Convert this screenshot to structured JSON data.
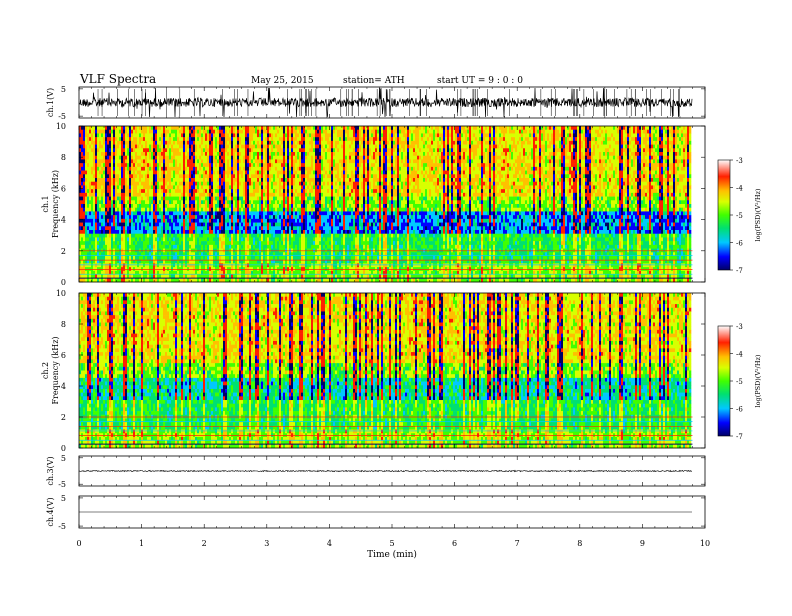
{
  "header": {
    "title": "VLF  Spectra",
    "date": "May 25,  2015",
    "station": "station= ATH",
    "start": "start  UT  =   9  : 0  : 0"
  },
  "chart_data": {
    "type": "heatmap",
    "xlabel": "Time  (min)",
    "xlim": [
      0,
      10
    ],
    "x_ticks": [
      "0",
      "1",
      "2",
      "3",
      "4",
      "5",
      "6",
      "7",
      "8",
      "9",
      "10"
    ],
    "panels": [
      {
        "label": "ch.1(V)",
        "type": "waveform",
        "ylim": [
          -5,
          5
        ],
        "y_ticks": [
          "5",
          "-5"
        ],
        "amplitude": "high"
      },
      {
        "label": "ch.1\nFrequency  (kHz)",
        "type": "spectrogram",
        "ylim": [
          0,
          10
        ],
        "y_ticks": [
          "0",
          "2",
          "4",
          "6",
          "8",
          "10"
        ],
        "colorbar": {
          "label": "log(PSD)(V²/Hz)",
          "range": [
            -7,
            -3
          ],
          "ticks": [
            "-3",
            "-4",
            "-5",
            "-6",
            "-7"
          ]
        }
      },
      {
        "label": "ch.2\nFrequency  (kHz)",
        "type": "spectrogram",
        "ylim": [
          0,
          10
        ],
        "y_ticks": [
          "0",
          "2",
          "4",
          "6",
          "8",
          "10"
        ],
        "colorbar": {
          "label": "log(PSD)(V²/Hz)",
          "range": [
            -7,
            -3
          ],
          "ticks": [
            "-3",
            "-4",
            "-5",
            "-6",
            "-7"
          ]
        }
      },
      {
        "label": "ch.3(V)",
        "type": "waveform",
        "ylim": [
          -5,
          5
        ],
        "y_ticks": [
          "5",
          "-5"
        ],
        "amplitude": "low"
      },
      {
        "label": "ch.4(V)",
        "type": "waveform",
        "ylim": [
          -5,
          5
        ],
        "y_ticks": [
          "5",
          "-5"
        ],
        "amplitude": "flat"
      }
    ],
    "data_end_min": 9.8,
    "colors": {
      "scale": [
        "#000066",
        "#0000ff",
        "#00c8ff",
        "#00e070",
        "#40ff00",
        "#d8ff00",
        "#ffc000",
        "#ff2000",
        "#ffffff"
      ],
      "frame": "#000000",
      "trace": "#000000"
    }
  }
}
